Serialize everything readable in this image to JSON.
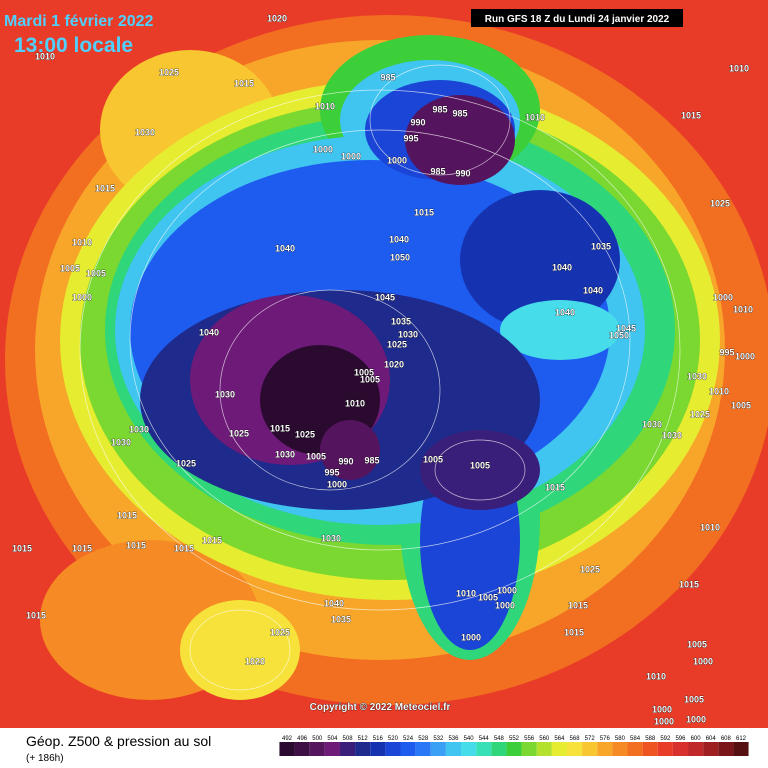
{
  "header": {
    "date": "Mardi 1 février 2022",
    "time": "13:00 locale",
    "run": "Run GFS 18 Z du Lundi 24 janvier 2022"
  },
  "copyright": "Copyright © 2022 Meteociel.fr",
  "footer": {
    "title": "Géop. Z500 & pression au sol",
    "subtitle": "(+ 186h)"
  },
  "colorbar": {
    "ticks": [
      492,
      496,
      500,
      504,
      508,
      512,
      516,
      520,
      524,
      528,
      532,
      536,
      540,
      544,
      548,
      552,
      556,
      560,
      564,
      568,
      572,
      576,
      580,
      584,
      588,
      592,
      596,
      600,
      604,
      608,
      612
    ],
    "colors": [
      "#2a0a2e",
      "#3d0f45",
      "#55145e",
      "#6e1a78",
      "#3a1f7a",
      "#1e2a8c",
      "#1533b0",
      "#1a45d6",
      "#1e5cf0",
      "#2a78f5",
      "#3aa0f5",
      "#40c4f0",
      "#46dcea",
      "#38e0b8",
      "#2fd67a",
      "#3ccf3a",
      "#7ad830",
      "#b4e02e",
      "#e6ec30",
      "#f6e23a",
      "#f8c630",
      "#f8a62a",
      "#f68a24",
      "#f26e20",
      "#ee5422",
      "#e83c28",
      "#d8302c",
      "#c0282a",
      "#9e1e22",
      "#7a161a",
      "#561012"
    ]
  },
  "pressure_labels": [
    "1020",
    "1010",
    "1025",
    "1015",
    "1030",
    "985",
    "985",
    "985",
    "990",
    "995",
    "1010",
    "1000",
    "1000",
    "1000",
    "985",
    "990",
    "1010",
    "1015",
    "1010",
    "1015",
    "1015",
    "1025",
    "1010",
    "1040",
    "1040",
    "1050",
    "1035",
    "1040",
    "1040",
    "1005",
    "1005",
    "1000",
    "1045",
    "1040",
    "1035",
    "1030",
    "1025",
    "1040",
    "1020",
    "1045",
    "1050",
    "1000",
    "1010",
    "995",
    "1000",
    "1030",
    "1005",
    "1005",
    "1010",
    "1030",
    "1010",
    "1005",
    "1025",
    "1030",
    "1015",
    "1025",
    "1025",
    "1030",
    "1030",
    "1030",
    "1030",
    "1005",
    "990",
    "985",
    "995",
    "1000",
    "1025",
    "1005",
    "1005",
    "1015",
    "1015",
    "1010",
    "1015",
    "1015",
    "1015",
    "1015",
    "1015",
    "1030",
    "1025",
    "1015",
    "1015",
    "1040",
    "1035",
    "1010",
    "1005",
    "1000",
    "1000",
    "1015",
    "1015",
    "1025",
    "1020",
    "1000",
    "1005",
    "1000",
    "1010",
    "1005",
    "1000",
    "1000",
    "1000"
  ]
}
